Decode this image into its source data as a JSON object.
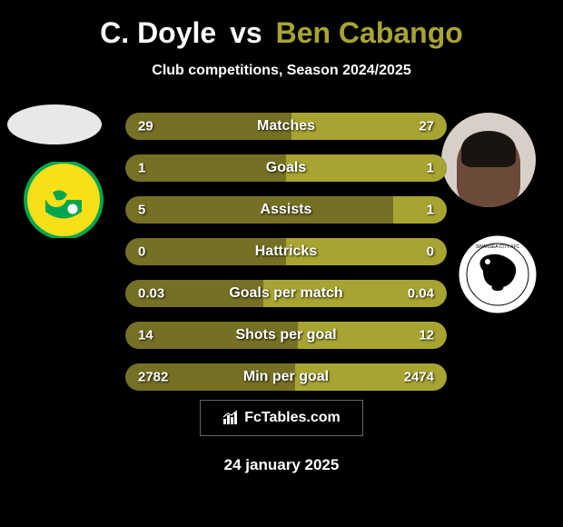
{
  "title": {
    "player1": "C. Doyle",
    "vs": "vs",
    "player2": "Ben Cabango",
    "player1_color": "#ffffff",
    "player2_color": "#a8a432"
  },
  "subtitle": "Club competitions, Season 2024/2025",
  "colors": {
    "player1_bar": "#757024",
    "player2_bar": "#a8a432",
    "background": "#000000",
    "bar_bg": "#333333"
  },
  "stats": [
    {
      "label": "Matches",
      "left_val": "29",
      "right_val": "27",
      "left_pct": 51.8,
      "right_pct": 48.2
    },
    {
      "label": "Goals",
      "left_val": "1",
      "right_val": "1",
      "left_pct": 50,
      "right_pct": 50
    },
    {
      "label": "Assists",
      "left_val": "5",
      "right_val": "1",
      "left_pct": 83.3,
      "right_pct": 16.7
    },
    {
      "label": "Hattricks",
      "left_val": "0",
      "right_val": "0",
      "left_pct": 50,
      "right_pct": 50
    },
    {
      "label": "Goals per match",
      "left_val": "0.03",
      "right_val": "0.04",
      "left_pct": 42.9,
      "right_pct": 57.1
    },
    {
      "label": "Shots per goal",
      "left_val": "14",
      "right_val": "12",
      "left_pct": 53.8,
      "right_pct": 46.2
    },
    {
      "label": "Min per goal",
      "left_val": "2782",
      "right_val": "2474",
      "left_pct": 52.9,
      "right_pct": 47.1
    }
  ],
  "footer": {
    "brand": "FcTables.com",
    "date": "24 january 2025"
  },
  "clubs": {
    "left": {
      "name": "Norwich City",
      "primary_color": "#f7e018",
      "secondary_color": "#00a650"
    },
    "right": {
      "name": "Swansea City",
      "primary_color": "#ffffff",
      "secondary_color": "#000000"
    }
  }
}
